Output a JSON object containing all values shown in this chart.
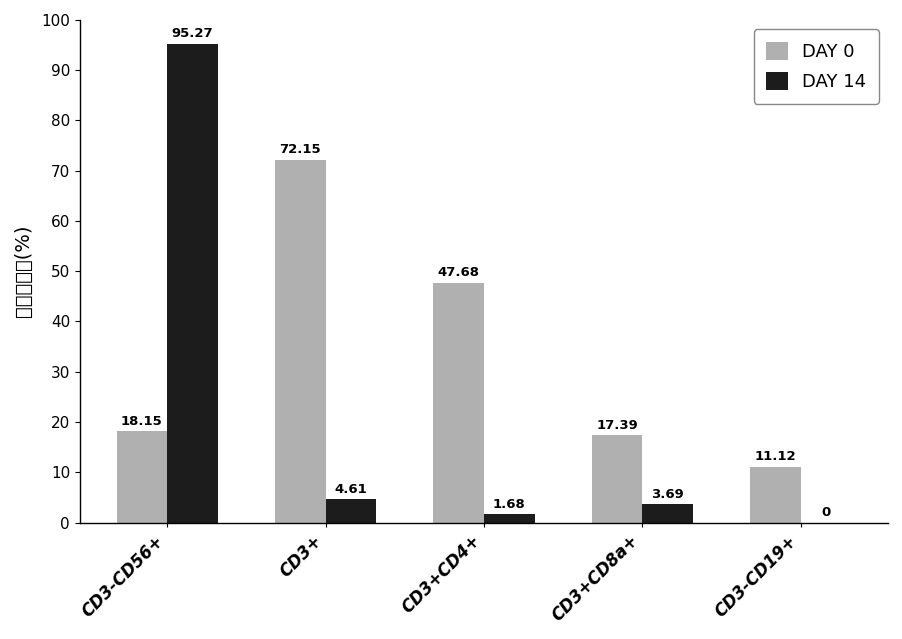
{
  "categories": [
    "CD3-CD56+",
    "CD3+",
    "CD3+CD4+",
    "CD3+CD8a+",
    "CD3-CD19+"
  ],
  "day0_values": [
    18.15,
    72.15,
    47.68,
    17.39,
    11.12
  ],
  "day14_values": [
    95.27,
    4.61,
    1.68,
    3.69,
    0
  ],
  "day0_color": "#b0b0b0",
  "day14_color": "#1c1c1c",
  "ylabel": "细胞百分比(%)",
  "legend_day0": "DAY 0",
  "legend_day14": "DAY 14",
  "ylim": [
    0,
    100
  ],
  "yticks": [
    0,
    10,
    20,
    30,
    40,
    50,
    60,
    70,
    80,
    90,
    100
  ],
  "bar_width": 0.32,
  "figsize": [
    9.02,
    6.39
  ],
  "dpi": 100,
  "tick_fontsize": 11,
  "legend_fontsize": 13,
  "ylabel_fontsize": 14,
  "annotation_fontsize": 9.5,
  "xtick_fontsize": 12
}
